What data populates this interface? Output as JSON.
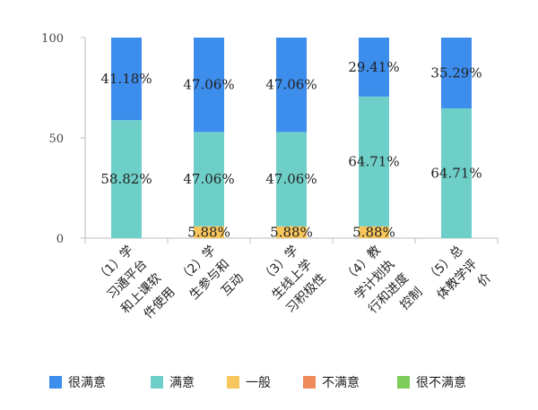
{
  "chart_data": {
    "type": "bar",
    "stacked": true,
    "categories": [
      [
        "（1）学",
        "习通平台",
        "和上课软",
        "件使用"
      ],
      [
        "（2）学",
        "生参与和",
        "互动"
      ],
      [
        "（3）学",
        "生线上学",
        "习积极性"
      ],
      [
        "（4）教",
        "学计划执",
        "行和进度",
        "控制"
      ],
      [
        "（5）总",
        "体教学评",
        "价"
      ]
    ],
    "series": [
      {
        "name": "很不满意",
        "values": [
          0,
          0,
          0,
          0,
          0
        ],
        "color": "#7dcd5a",
        "labels": [
          "",
          "",
          "",
          "",
          ""
        ]
      },
      {
        "name": "不满意",
        "values": [
          0,
          0,
          0,
          0,
          0
        ],
        "color": "#ef8a5b",
        "labels": [
          "",
          "",
          "",
          "",
          ""
        ]
      },
      {
        "name": "一般",
        "values": [
          0,
          5.88,
          5.88,
          5.88,
          0
        ],
        "color": "#f7c65c",
        "labels": [
          "",
          "5.88%",
          "5.88%",
          "5.88%",
          ""
        ]
      },
      {
        "name": "满意",
        "values": [
          58.82,
          47.06,
          47.06,
          64.71,
          64.71
        ],
        "color": "#6ecfc9",
        "labels": [
          "58.82%",
          "47.06%",
          "47.06%",
          "64.71%",
          "64.71%"
        ]
      },
      {
        "name": "很满意",
        "values": [
          41.18,
          47.06,
          47.06,
          29.41,
          35.29
        ],
        "color": "#3d8ded",
        "labels": [
          "41.18%",
          "47.06%",
          "47.06%",
          "29.41%",
          "35.29%"
        ]
      }
    ],
    "legend_order": [
      "很满意",
      "满意",
      "一般",
      "不满意",
      "很不满意"
    ],
    "yticks": [
      "0",
      "50",
      "100"
    ],
    "ylim": [
      0,
      100
    ],
    "legend_position": "bottom",
    "grid": false
  }
}
